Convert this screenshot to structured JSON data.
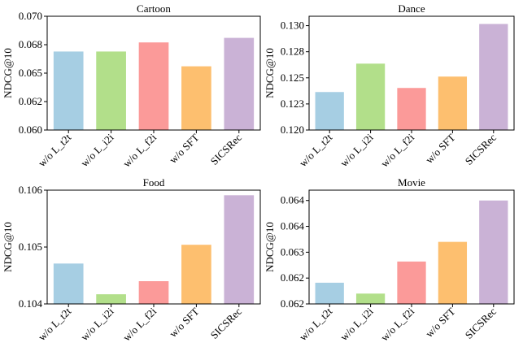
{
  "chart_data": [
    {
      "type": "bar",
      "title": "Cartoon",
      "ylabel": "NDCG@10",
      "categories": [
        "w/o L_t2t",
        "w/o L_i2i",
        "w/o L_f2i",
        "w/o SFT",
        "SICSRec"
      ],
      "values": [
        0.0669,
        0.0669,
        0.0677,
        0.0656,
        0.0681
      ],
      "colors": [
        "#a6cee3",
        "#b2df8a",
        "#fb9a99",
        "#fdbf6f",
        "#cab2d6"
      ],
      "ylim": [
        0.06,
        0.07
      ],
      "yticks": [
        {
          "value": 0.06,
          "label": "0.060"
        },
        {
          "value": 0.0625,
          "label": "0.062"
        },
        {
          "value": 0.065,
          "label": "0.065"
        },
        {
          "value": 0.0675,
          "label": "0.068"
        },
        {
          "value": 0.07,
          "label": "0.070"
        }
      ]
    },
    {
      "type": "bar",
      "title": "Dance",
      "ylabel": "NDCG@10",
      "categories": [
        "w/o L_t2t",
        "w/o L_i2i",
        "w/o L_f2i",
        "w/o SFT",
        "SICSRec"
      ],
      "values": [
        0.12364,
        0.12636,
        0.12403,
        0.12512,
        0.13016
      ],
      "colors": [
        "#a6cee3",
        "#b2df8a",
        "#fb9a99",
        "#fdbf6f",
        "#cab2d6"
      ],
      "ylim": [
        0.12,
        0.1309
      ],
      "yticks": [
        {
          "value": 0.12,
          "label": "0.120"
        },
        {
          "value": 0.1225,
          "label": "0.123"
        },
        {
          "value": 0.125,
          "label": "0.125"
        },
        {
          "value": 0.1275,
          "label": "0.128"
        },
        {
          "value": 0.13,
          "label": "0.130"
        }
      ]
    },
    {
      "type": "bar",
      "title": "Food",
      "ylabel": "NDCG@10",
      "categories": [
        "w/o L_t2t",
        "w/o L_i2i",
        "w/o L_f2i",
        "w/o SFT",
        "SICSRec"
      ],
      "values": [
        0.10471,
        0.10417,
        0.1044,
        0.10504,
        0.10591
      ],
      "colors": [
        "#a6cee3",
        "#b2df8a",
        "#fb9a99",
        "#fdbf6f",
        "#cab2d6"
      ],
      "ylim": [
        0.104,
        0.106
      ],
      "yticks": [
        0.104,
        0.105,
        0.106
      ]
    },
    {
      "type": "bar",
      "title": "Movie",
      "ylabel": "NDCG@10",
      "categories": [
        "w/o L_t2t",
        "w/o L_i2i",
        "w/o L_f2i",
        "w/o SFT",
        "SICSRec"
      ],
      "values": [
        0.06241,
        0.0622,
        0.06282,
        0.0632,
        0.064
      ],
      "colors": [
        "#a6cee3",
        "#b2df8a",
        "#fb9a99",
        "#fdbf6f",
        "#cab2d6"
      ],
      "ylim": [
        0.062,
        0.0642
      ],
      "yticks": [
        {
          "value": 0.062,
          "label": "0.062"
        },
        {
          "value": 0.0625,
          "label": "0.062"
        },
        {
          "value": 0.063,
          "label": "0.063"
        },
        {
          "value": 0.0635,
          "label": "0.064"
        },
        {
          "value": 0.064,
          "label": "0.064"
        }
      ]
    }
  ]
}
